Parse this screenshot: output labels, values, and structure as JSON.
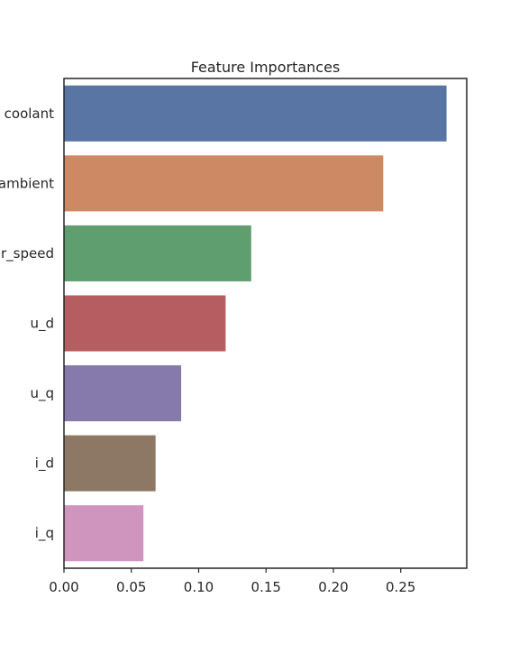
{
  "chart_data": {
    "type": "bar",
    "orientation": "horizontal",
    "title": "Feature Importances",
    "xlabel": "",
    "ylabel": "",
    "categories": [
      "coolant",
      "ambient",
      "r_speed",
      "u_d",
      "u_q",
      "i_d",
      "i_q"
    ],
    "values": [
      0.284,
      0.237,
      0.139,
      0.12,
      0.087,
      0.068,
      0.059
    ],
    "colors": [
      "#5875a4",
      "#cc8963",
      "#5f9e6e",
      "#b55d60",
      "#857aab",
      "#8d7866",
      "#d095bf"
    ],
    "xlim": [
      0,
      0.299
    ],
    "xticks": [
      0.0,
      0.05,
      0.1,
      0.15,
      0.2,
      0.25
    ],
    "xtick_labels": [
      "0.00",
      "0.05",
      "0.10",
      "0.15",
      "0.20",
      "0.25"
    ],
    "grid": false,
    "legend": "none"
  }
}
